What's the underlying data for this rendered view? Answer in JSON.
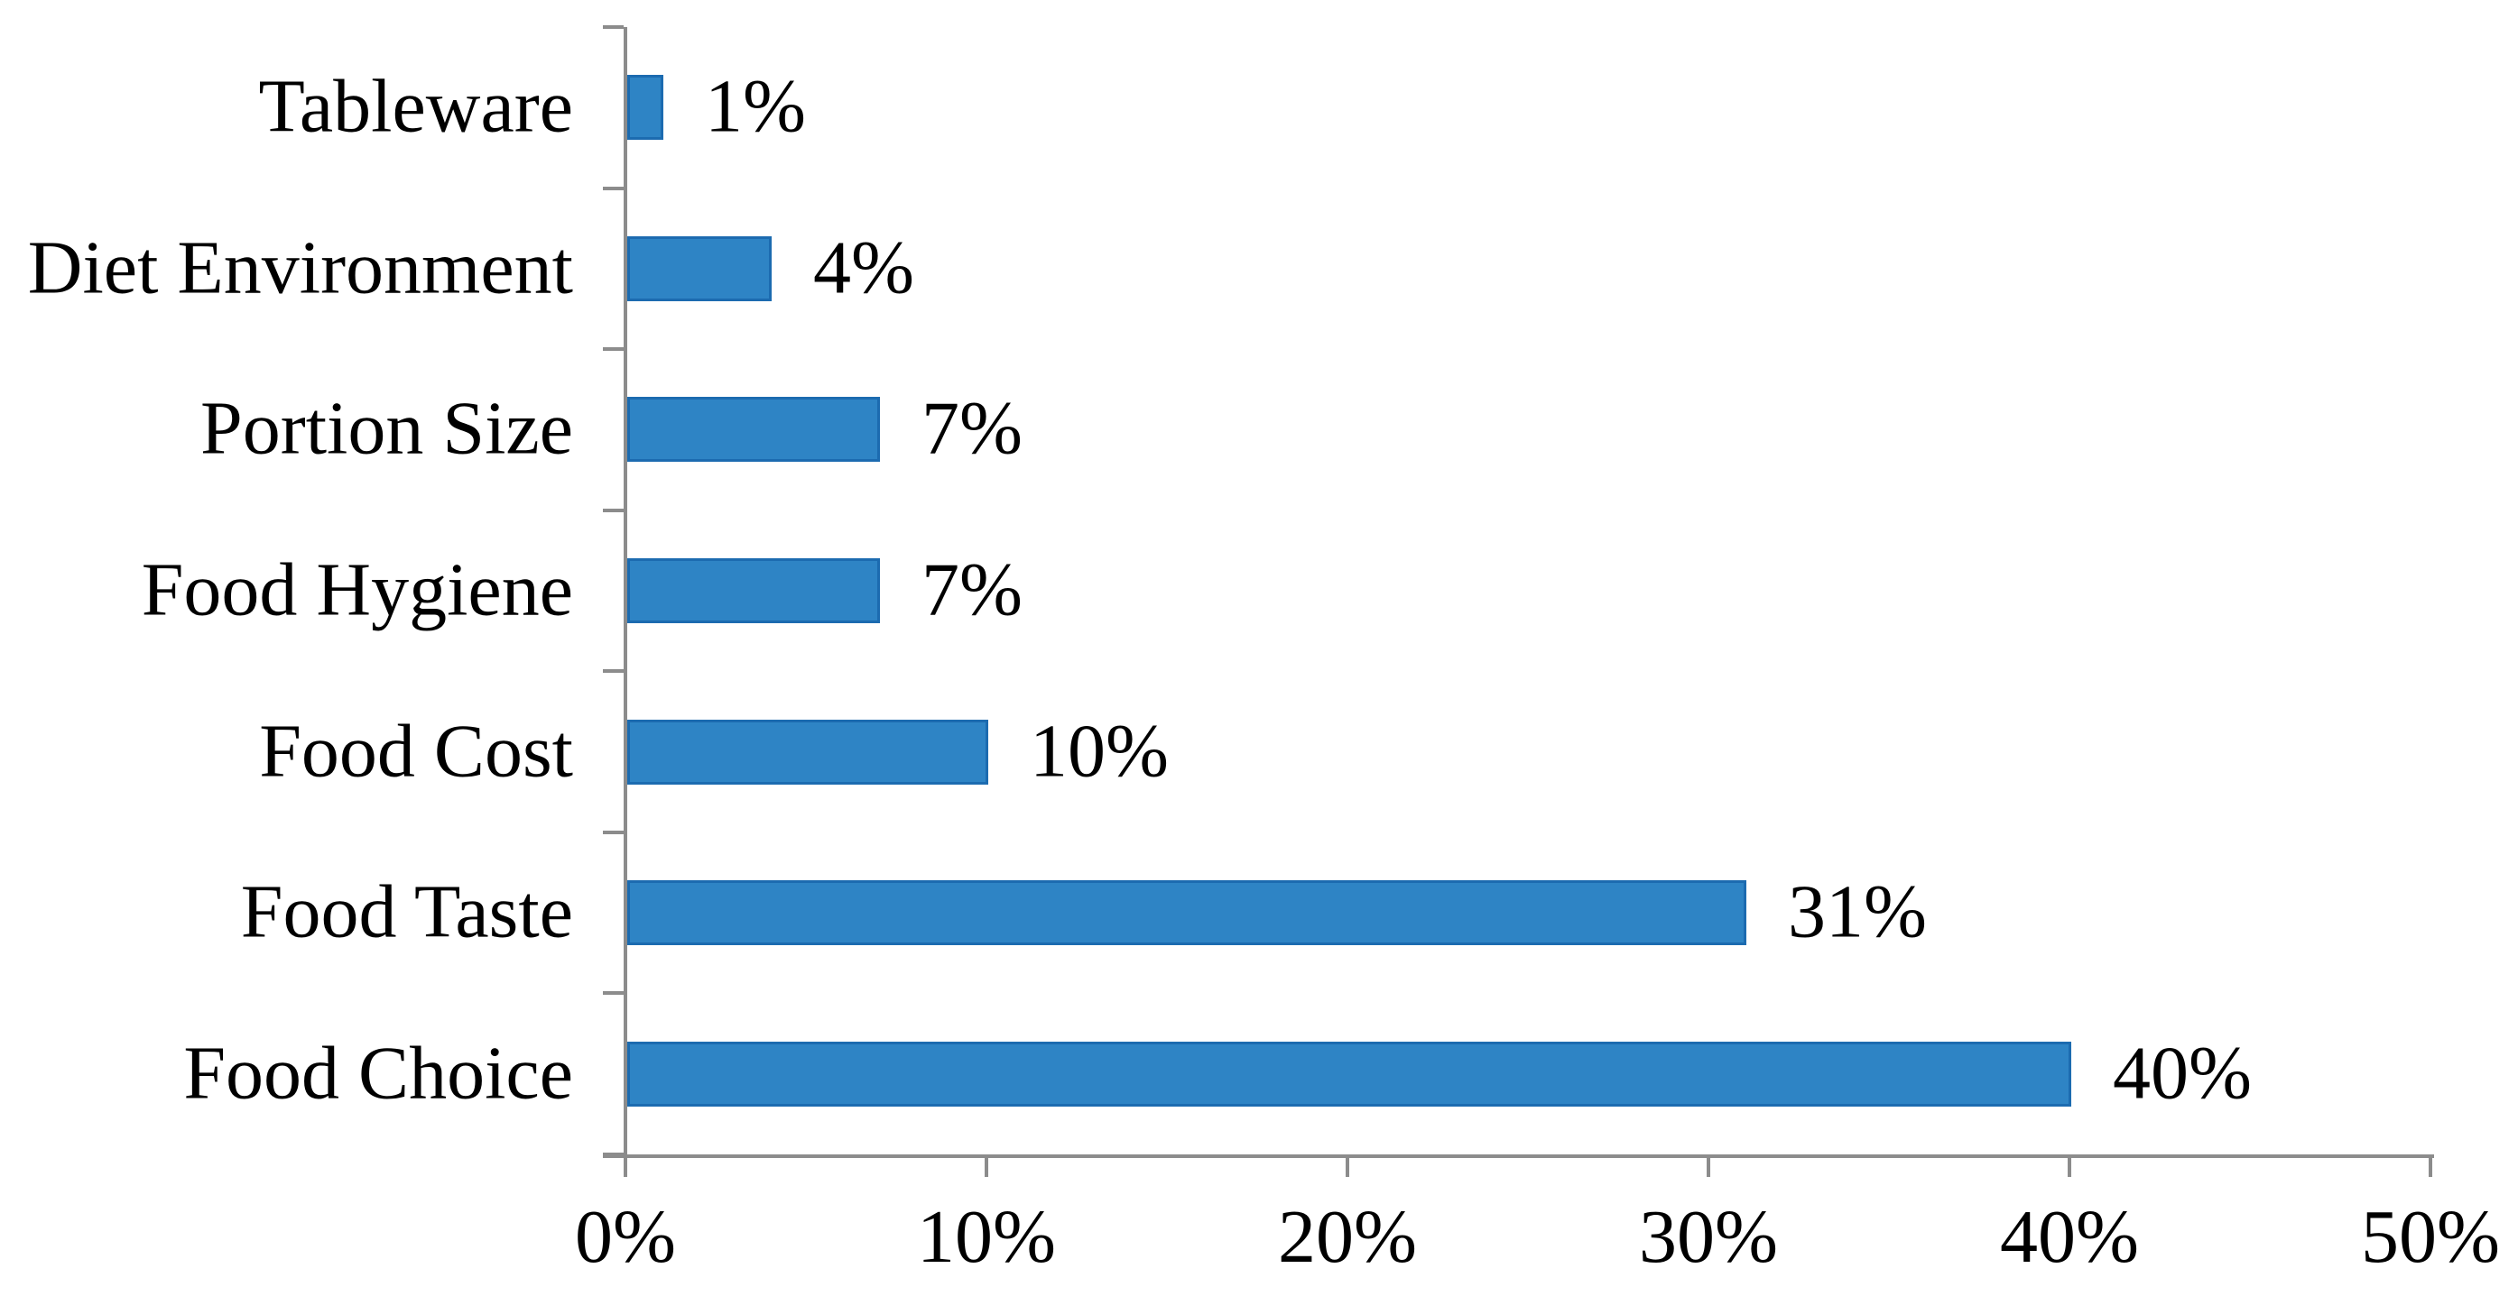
{
  "chart_data": {
    "type": "bar",
    "orientation": "horizontal",
    "title": "",
    "xlabel": "",
    "ylabel": "",
    "grid": false,
    "legend": null,
    "categories": [
      "Tableware",
      "Diet Environment",
      "Portion Size",
      "Food Hygiene",
      "Food Cost",
      "Food Taste",
      "Food Choice"
    ],
    "values": [
      1,
      4,
      7,
      7,
      10,
      31,
      40
    ],
    "value_labels": [
      "1%",
      "4%",
      "7%",
      "7%",
      "10%",
      "31%",
      "40%"
    ],
    "xlim": [
      0,
      50
    ],
    "x_tick_values": [
      0,
      10,
      20,
      30,
      40,
      50
    ],
    "x_tick_labels": [
      "0%",
      "10%",
      "20%",
      "30%",
      "40%",
      "50%"
    ],
    "colors": {
      "bar_fill": "#2E84C5",
      "bar_border": "#1C6BB0",
      "axis": "#8C8C8C",
      "text": "#000000",
      "background": "#FFFFFF"
    }
  }
}
